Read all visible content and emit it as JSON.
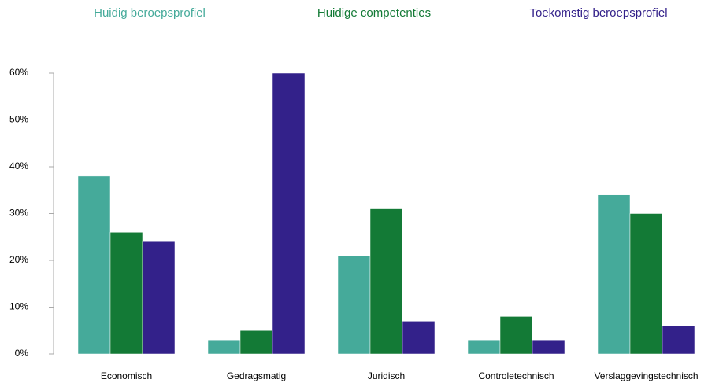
{
  "chart_data": {
    "type": "bar",
    "categories": [
      "Economisch",
      "Gedragsmatig",
      "Juridisch",
      "Controletechnisch",
      "Verslaggevingstechnisch"
    ],
    "series": [
      {
        "name": "Huidig beroepsprofiel",
        "color": "#45aa9a",
        "values": [
          38,
          3,
          21,
          3,
          34
        ]
      },
      {
        "name": "Huidige competenties",
        "color": "#137a36",
        "values": [
          26,
          5,
          31,
          8,
          30
        ]
      },
      {
        "name": "Toekomstig beroepsprofiel",
        "color": "#33218a",
        "values": [
          24,
          60,
          7,
          3,
          6
        ]
      }
    ],
    "ylim": [
      0,
      60
    ],
    "yticks": [
      {
        "value": 0,
        "label": "0%"
      },
      {
        "value": 10,
        "label": "10%"
      },
      {
        "value": 20,
        "label": "20%"
      },
      {
        "value": 30,
        "label": "30%"
      },
      {
        "value": 40,
        "label": "40%"
      },
      {
        "value": 50,
        "label": "50%"
      },
      {
        "value": 60,
        "label": "60%"
      }
    ],
    "legend": "top",
    "grid": false
  }
}
